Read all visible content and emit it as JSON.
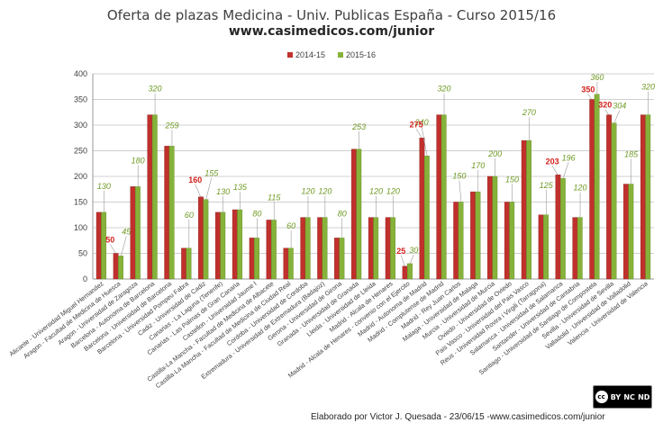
{
  "chart_data": {
    "type": "bar",
    "title": "Oferta de plazas Medicina - Univ. Publicas España - Curso 2015/16",
    "subtitle": "www.casimedicos.com/junior",
    "ylim": [
      0,
      400
    ],
    "yticks": [
      0,
      50,
      100,
      150,
      200,
      250,
      300,
      350,
      400
    ],
    "grid": true,
    "legend_position": "top-center",
    "categories": [
      "Alicante - Universidad Miguel Hernandez",
      "Aragon - Facultad de Medicina de Huesca",
      "Aragon - Universidad de Zaragoza",
      "Barcelona - Autonoma de Barcelona",
      "Barcelona - Universidad de Barcelona",
      "Barcelona - Universidad Pompeu Fabra",
      "Cadiz - Universidad de Cadiz",
      "Canarias - La Laguna (Tenerife)",
      "Canarias - Las Palmas de Gran Canaria",
      "Castellon - Universidad Jaume I",
      "Castilla-La Mancha - Facultad de Medicina de Albacete",
      "Castilla-La Mancha - Facultad de Medicina de Ciudad Real",
      "Cordoba - Universidad de Cordoba",
      "Extremadura - Universidad de Extremadura (Badajoz)",
      "Gerona - Universidad de Girona",
      "Granada - Universidad de Granada",
      "Lleida - Universidad de Lleida",
      "Madrid - Alcala de Henares",
      "Madrid - Alcala de Henares - convenio con el Ejercito",
      "Madrid - Autonoma de Madrid",
      "Madrid - Complutense de Madrid",
      "Madrid - Rey Juan Carlos",
      "Malaga - Universidad de Malaga",
      "Murcia - Universidad de Murcia",
      "Oviedo - Universidad de Oviedo",
      "Pais Vasco - Universidad del Pais Vasco",
      "Reus - Universidad Rovira i Virgili (Tarragona)",
      "Salamanca - Universidad de Salamanca",
      "Santander - Universidad de Cantabria",
      "Santiago - Universidad de Santiago de Compostela",
      "Sevilla - Universidad de Sevilla",
      "Valladolid - Universidad de Valladolid",
      "Valencia - Universidad de Valencia"
    ],
    "series": [
      {
        "name": "2014-15",
        "color": "#c0302c",
        "values": [
          130,
          50,
          180,
          320,
          259,
          60,
          160,
          130,
          135,
          80,
          115,
          60,
          120,
          120,
          80,
          253,
          120,
          120,
          25,
          275,
          320,
          150,
          170,
          200,
          150,
          270,
          125,
          203,
          120,
          350,
          320,
          185,
          320
        ],
        "labels": [
          "",
          "50",
          "",
          "",
          "",
          "",
          "160",
          "",
          "",
          "",
          "",
          "",
          "",
          "",
          "",
          "",
          "",
          "",
          "25",
          "275",
          "",
          "",
          "",
          "",
          "",
          "",
          "",
          "203",
          "",
          "350",
          "320",
          "",
          ""
        ]
      },
      {
        "name": "2015-16",
        "color": "#86b23a",
        "values": [
          130,
          45,
          180,
          320,
          259,
          60,
          155,
          130,
          135,
          80,
          115,
          60,
          120,
          120,
          80,
          253,
          120,
          120,
          30,
          240,
          320,
          150,
          170,
          200,
          150,
          270,
          125,
          196,
          120,
          360,
          304,
          185,
          320
        ],
        "labels": [
          "130",
          "45",
          "180",
          "320",
          "259",
          "60",
          "155",
          "130",
          "135",
          "80",
          "115",
          "60",
          "120",
          "120",
          "80",
          "253",
          "120",
          "120",
          "30",
          "240",
          "320",
          "150",
          "170",
          "200",
          "150",
          "270",
          "125",
          "196",
          "120",
          "360",
          "304",
          "185",
          "320"
        ]
      }
    ]
  },
  "footer": {
    "text": "Elaborado por Victor J. Quesada - 23/06/15 -www.casimedicos.com/junior"
  },
  "license": {
    "cc": "cc",
    "by": "BY",
    "nc": "NC",
    "nd": "ND"
  }
}
